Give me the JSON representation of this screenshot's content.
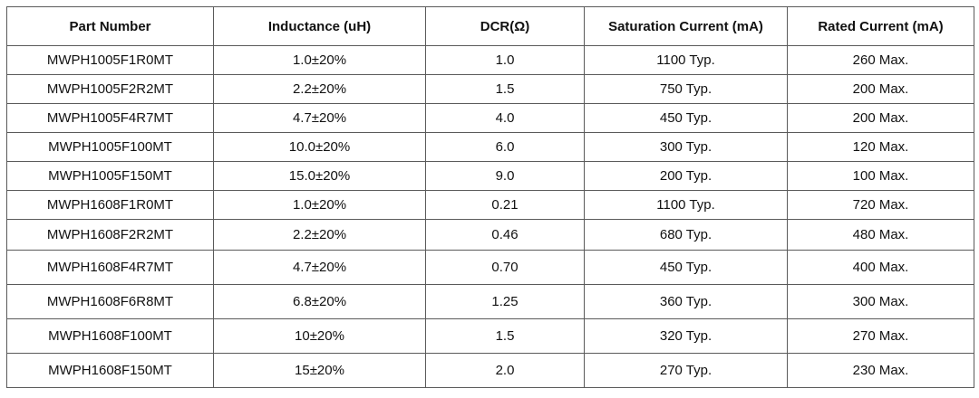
{
  "table": {
    "headers": [
      "Part Number",
      "Inductance (uH)",
      "DCR(Ω)",
      "Saturation Current (mA)",
      "Rated Current (mA)"
    ],
    "rows": [
      [
        "MWPH1005F1R0MT",
        "1.0±20%",
        "1.0",
        "1100 Typ.",
        "260 Max."
      ],
      [
        "MWPH1005F2R2MT",
        "2.2±20%",
        "1.5",
        "750 Typ.",
        "200 Max."
      ],
      [
        "MWPH1005F4R7MT",
        "4.7±20%",
        "4.0",
        "450 Typ.",
        "200 Max."
      ],
      [
        "MWPH1005F100MT",
        "10.0±20%",
        "6.0",
        "300 Typ.",
        "120 Max."
      ],
      [
        "MWPH1005F150MT",
        "15.0±20%",
        "9.0",
        "200 Typ.",
        "100 Max."
      ],
      [
        "MWPH1608F1R0MT",
        "1.0±20%",
        "0.21",
        "1100 Typ.",
        "720 Max."
      ],
      [
        "MWPH1608F2R2MT",
        "2.2±20%",
        "0.46",
        "680 Typ.",
        "480 Max."
      ],
      [
        "MWPH1608F4R7MT",
        "4.7±20%",
        "0.70",
        "450 Typ.",
        "400 Max."
      ],
      [
        "MWPH1608F6R8MT",
        "6.8±20%",
        "1.25",
        "360 Typ.",
        "300 Max."
      ],
      [
        "MWPH1608F100MT",
        "10±20%",
        "1.5",
        "320 Typ.",
        "270 Max."
      ],
      [
        "MWPH1608F150MT",
        "15±20%",
        "2.0",
        "270 Typ.",
        "230 Max."
      ]
    ]
  }
}
